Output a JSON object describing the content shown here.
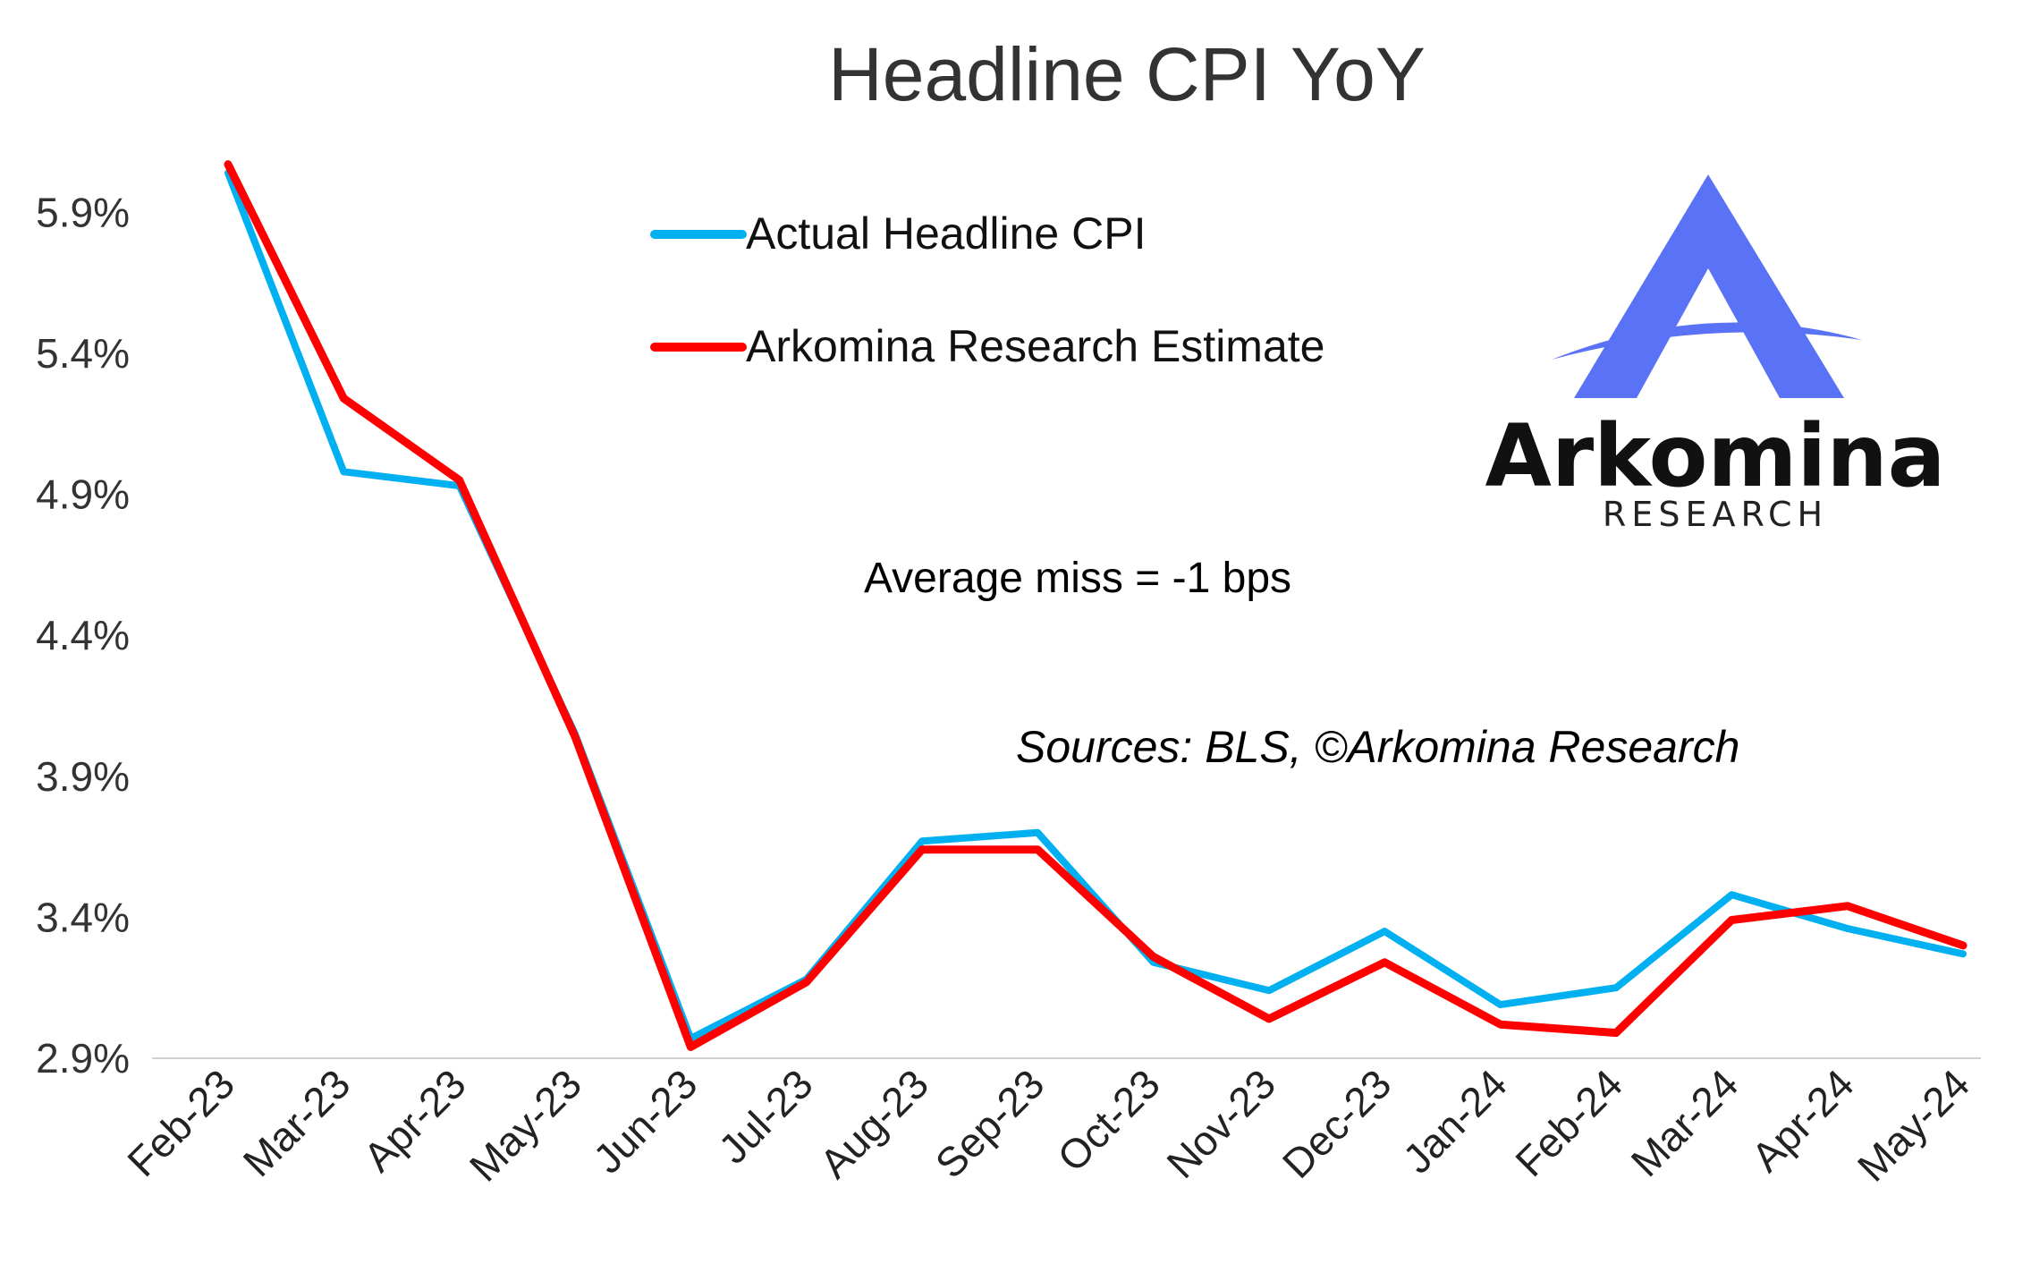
{
  "chart_data": {
    "type": "line",
    "title": "Headline CPI YoY",
    "categories": [
      "Feb-23",
      "Mar-23",
      "Apr-23",
      "May-23",
      "Jun-23",
      "Jul-23",
      "Aug-23",
      "Sep-23",
      "Oct-23",
      "Nov-23",
      "Dec-23",
      "Jan-24",
      "Feb-24",
      "Mar-24",
      "Apr-24",
      "May-24"
    ],
    "series": [
      {
        "name": "Actual Headline CPI",
        "color": "#00b0f0",
        "values": [
          6.04,
          4.98,
          4.93,
          4.05,
          2.97,
          3.18,
          3.67,
          3.7,
          3.24,
          3.14,
          3.35,
          3.09,
          3.15,
          3.48,
          3.36,
          3.27
        ]
      },
      {
        "name": "Arkomina Research Estimate",
        "color": "#ff0000",
        "values": [
          6.07,
          5.24,
          4.95,
          4.04,
          2.94,
          3.17,
          3.64,
          3.64,
          3.26,
          3.04,
          3.24,
          3.02,
          2.99,
          3.39,
          3.44,
          3.3
        ]
      }
    ],
    "ylim": [
      2.9,
      6.05
    ],
    "yticks": [
      "2.9%",
      "3.4%",
      "3.9%",
      "4.4%",
      "4.9%",
      "5.4%",
      "5.9%"
    ],
    "ytick_values": [
      2.9,
      3.4,
      3.9,
      4.4,
      4.9,
      5.4,
      5.9
    ],
    "legend_position": "top-center",
    "grid": false,
    "annotation": "Average miss = -1 bps",
    "source": "Sources: BLS, ©Arkomina Research"
  },
  "logo": {
    "name": "Arkomina",
    "subtitle": "RESEARCH",
    "accent_color": "#5a72f5"
  }
}
